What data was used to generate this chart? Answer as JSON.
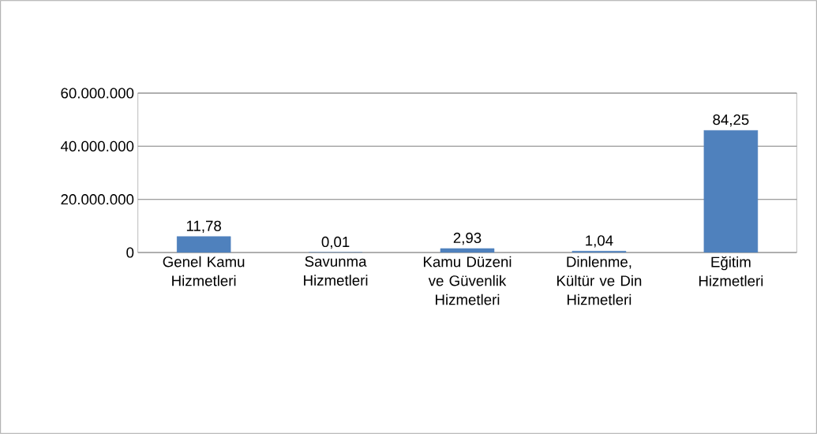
{
  "chart_data": {
    "type": "bar",
    "categories": [
      "Genel Kamu Hizmetleri",
      "Savunma Hizmetleri",
      "Kamu Düzeni ve Güvenlik Hizmetleri",
      "Dinlenme, Kültür ve Din Hizmetleri",
      "Eğitim Hizmetleri"
    ],
    "values": [
      6000000,
      0,
      1500000,
      500000,
      46000000
    ],
    "annotations": [
      {
        "text": "11,78",
        "x": "Genel Kamu Hizmetleri",
        "y": 6000000
      },
      {
        "text": "0,01",
        "x": "Savunma Hizmetleri",
        "y": 0
      },
      {
        "text": "2,93",
        "x": "Kamu Düzeni ve Güvenlik Hizmetleri",
        "y": 1500000
      },
      {
        "text": "1,04",
        "x": "Dinlenme, Kültür ve Din Hizmetleri",
        "y": 500000
      },
      {
        "text": "84,25",
        "x": "Eğitim Hizmetleri",
        "y": 46000000
      }
    ],
    "color": "#4f81bd",
    "ylim": [
      0,
      60000000
    ],
    "yticks": [
      {
        "value": 0,
        "label": "0"
      },
      {
        "value": 20000000,
        "label": "20.000.000"
      },
      {
        "value": 40000000,
        "label": "40.000.000"
      },
      {
        "value": 60000000,
        "label": "60.000.000"
      }
    ],
    "grid": "y"
  }
}
